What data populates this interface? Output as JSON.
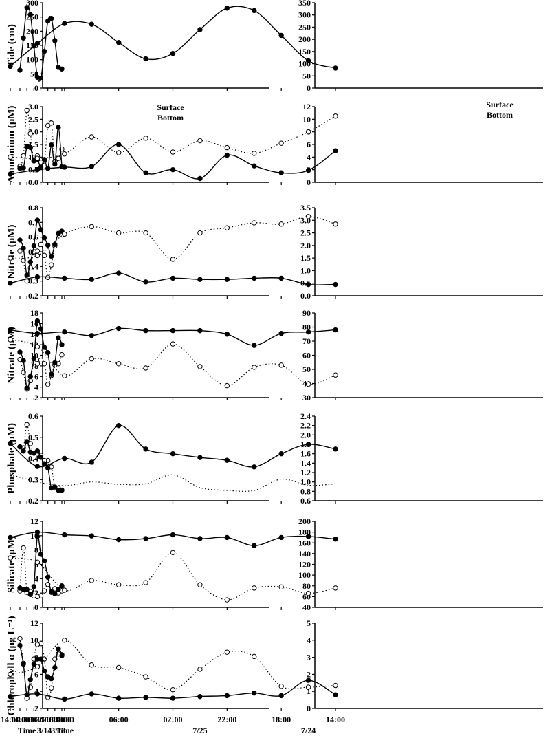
{
  "figure_title": "",
  "legend": {
    "surface": "Surface",
    "bottom": "Bottom"
  },
  "x_axes": {
    "left": {
      "ticks": [
        "14:00",
        "18:00",
        "22:00",
        "02:00",
        "06:00",
        "10:00",
        "14:00"
      ],
      "dates": [
        "3/13",
        "3/14"
      ],
      "time_label": "Time"
    },
    "right": {
      "ticks": [
        "14:00",
        "18:00",
        "22:00",
        "02:00",
        "06:00",
        "10:00",
        "14:00"
      ],
      "dates": [
        "7/24",
        "7/25"
      ],
      "time_label": "Time"
    }
  },
  "chart_data": [
    {
      "id": "tide-left",
      "type": "line",
      "ylabel": "Tide (cm)",
      "ylim": [
        0,
        300
      ],
      "yticks": [
        "0",
        "50",
        "100",
        "150",
        "200",
        "250",
        "300"
      ],
      "x": [
        0,
        2,
        4,
        6,
        8,
        10,
        12,
        14,
        16,
        18,
        20,
        22,
        24
      ],
      "series": [
        {
          "name": "Tide",
          "style": "filled",
          "values": [
            67,
            73,
            167,
            245,
            236,
            129,
            35,
            38,
            148,
            258,
            283,
            176,
            63
          ]
        }
      ]
    },
    {
      "id": "tide-right",
      "type": "line",
      "ylabel": "",
      "ylim": [
        0,
        350
      ],
      "yticks": [
        "0",
        "50",
        "100",
        "150",
        "200",
        "250",
        "300",
        "350"
      ],
      "x": [
        0,
        2,
        4,
        6,
        8,
        10,
        12,
        14,
        16,
        18,
        20,
        22,
        24
      ],
      "series": [
        {
          "name": "Tide",
          "style": "filled",
          "values": [
            82,
            112,
            216,
            318,
            328,
            240,
            142,
            120,
            187,
            262,
            265,
            183,
            89
          ]
        }
      ]
    },
    {
      "id": "ammonium-left",
      "type": "line",
      "ylabel": "Ammonium (μM)",
      "ylim": [
        0,
        3
      ],
      "yticks": [
        "0.0",
        "0.5",
        "1.0",
        "1.5",
        "2.0",
        "2.5",
        "3.0"
      ],
      "x": [
        0,
        2,
        4,
        6,
        8,
        10,
        12,
        14,
        16,
        18,
        20,
        22,
        24
      ],
      "series": [
        {
          "name": "Surface",
          "style": "filled",
          "values": [
            0.62,
            2.18,
            0.72,
            1.48,
            0.55,
            0.9,
            0.6,
            0.9,
            0.85,
            1.38,
            1.42,
            0.57,
            0.55
          ]
        },
        {
          "name": "Bottom",
          "style": "open",
          "values": [
            1.32,
            0.95,
            0.83,
            2.35,
            2.25,
            0.85,
            0.8,
            1.05,
            0.85,
            1.93,
            2.85,
            1.05,
            0.63
          ]
        }
      ]
    },
    {
      "id": "ammonium-right",
      "type": "line",
      "ylabel": "",
      "ylim": [
        0,
        12
      ],
      "yticks": [
        "0",
        "2",
        "4",
        "6",
        "8",
        "10",
        "12"
      ],
      "x": [
        0,
        2,
        4,
        6,
        8,
        10,
        12,
        14,
        16,
        18,
        20,
        22,
        24
      ],
      "series": [
        {
          "name": "Surface",
          "style": "filled",
          "values": [
            5.0,
            1.9,
            1.5,
            2.6,
            4.3,
            0.6,
            2.0,
            1.5,
            6.0,
            2.5,
            2.4,
            2.0,
            1.3
          ]
        },
        {
          "name": "Bottom",
          "style": "open",
          "values": [
            10.5,
            8.0,
            6.2,
            4.6,
            5.5,
            6.6,
            4.8,
            7.0,
            4.7,
            7.2,
            4.5,
            3.8,
            4.0
          ]
        }
      ]
    },
    {
      "id": "nitrite-left",
      "type": "line",
      "ylabel": "Nitrite (μM)",
      "ylim": [
        0.2,
        0.8
      ],
      "yticks": [
        "0.2",
        "0.3",
        "0.4",
        "0.5",
        "0.6",
        "0.7",
        "0.8"
      ],
      "x": [
        0,
        2,
        4,
        6,
        8,
        10,
        12,
        14,
        16,
        18,
        20,
        22,
        24
      ],
      "series": [
        {
          "name": "Surface",
          "style": "filled",
          "values": [
            0.64,
            0.625,
            0.55,
            0.47,
            0.545,
            0.595,
            0.65,
            0.715,
            0.54,
            0.43,
            0.34,
            0.525,
            0.58
          ]
        },
        {
          "name": "Bottom",
          "style": "open",
          "values": [
            0.615,
            0.625,
            0.54,
            0.41,
            0.325,
            0.475,
            0.55,
            0.505,
            0.5,
            0.39,
            0.3,
            0.44,
            0.505
          ]
        }
      ]
    },
    {
      "id": "nitrite-right",
      "type": "line",
      "ylabel": "",
      "ylim": [
        0,
        3.5
      ],
      "yticks": [
        "0.0",
        "0.5",
        "1.0",
        "1.5",
        "2.0",
        "2.5",
        "3.0",
        "3.5"
      ],
      "x": [
        0,
        2,
        4,
        6,
        8,
        10,
        12,
        14,
        16,
        18,
        20,
        22,
        24
      ],
      "series": [
        {
          "name": "Surface",
          "style": "filled",
          "values": [
            0.45,
            0.45,
            0.7,
            0.7,
            0.65,
            0.65,
            0.7,
            0.55,
            0.9,
            0.65,
            0.7,
            0.75,
            0.5
          ]
        },
        {
          "name": "Bottom",
          "style": "open",
          "values": [
            2.85,
            3.15,
            2.85,
            2.9,
            2.7,
            2.5,
            1.45,
            2.5,
            2.5,
            2.75,
            2.45,
            1.6,
            1.5
          ]
        }
      ]
    },
    {
      "id": "nitrate-left",
      "type": "line",
      "ylabel": "Nitrate (μM)",
      "ylim": [
        2,
        18
      ],
      "yticks": [
        "2",
        "4",
        "6",
        "8",
        "10",
        "12",
        "14",
        "16",
        "18"
      ],
      "x": [
        0,
        2,
        4,
        6,
        8,
        10,
        12,
        14,
        16,
        18,
        20,
        22,
        24
      ],
      "series": [
        {
          "name": "Surface",
          "style": "filled",
          "values": [
            12.0,
            13.3,
            8.6,
            6.4,
            10.5,
            11.5,
            15.0,
            16.5,
            9.4,
            6.0,
            3.8,
            9.0,
            10.6
          ]
        },
        {
          "name": "Bottom",
          "style": "open",
          "values": [
            10.1,
            8.4,
            8.2,
            6.2,
            4.5,
            8.4,
            9.1,
            8.4,
            8.6,
            5.2,
            3.6,
            6.8,
            9.2
          ]
        }
      ]
    },
    {
      "id": "nitrate-right",
      "type": "line",
      "ylabel": "",
      "ylim": [
        30,
        90
      ],
      "yticks": [
        "30",
        "40",
        "50",
        "60",
        "70",
        "80",
        "90"
      ],
      "x": [
        0,
        2,
        4,
        6,
        8,
        10,
        12,
        14,
        16,
        18,
        20,
        22,
        24
      ],
      "series": [
        {
          "name": "Surface",
          "style": "filled",
          "values": [
            78,
            76.5,
            75.5,
            67,
            75,
            77.5,
            77.5,
            77.5,
            79,
            74,
            76.5,
            75.5,
            78
          ]
        },
        {
          "name": "Bottom",
          "style": "open",
          "values": [
            46,
            39.5,
            53,
            51.5,
            38.5,
            52,
            68,
            51,
            54,
            57.5,
            45.5,
            66,
            71
          ]
        }
      ]
    },
    {
      "id": "phosphate-left",
      "type": "line",
      "ylabel": "Phosphate (μM)",
      "ylim": [
        0.2,
        0.6
      ],
      "yticks": [
        "0.2",
        "0.3",
        "0.4",
        "0.5",
        "0.6"
      ],
      "x": [
        0,
        2,
        4,
        6,
        8,
        10,
        12,
        14,
        16,
        18,
        20,
        22,
        24
      ],
      "series": [
        {
          "name": "Surface",
          "style": "filled",
          "values": [
            0.25,
            0.25,
            0.265,
            0.26,
            0.355,
            0.375,
            0.405,
            0.435,
            0.425,
            0.43,
            0.48,
            0.435,
            0.455
          ]
        },
        {
          "name": "Bottom",
          "style": "open",
          "values": [
            0.25,
            0.26,
            0.265,
            0.36,
            0.39,
            0.39,
            0.415,
            0.425,
            0.425,
            0.47,
            0.56,
            0.45,
            0.455
          ]
        }
      ]
    },
    {
      "id": "phosphate-right",
      "type": "line",
      "ylabel": "",
      "ylim": [
        0.6,
        2.4
      ],
      "yticks": [
        "0.6",
        "0.8",
        "1.0",
        "1.2",
        "1.4",
        "1.6",
        "1.8",
        "2.0",
        "2.2",
        "2.4"
      ],
      "x": [
        0,
        2,
        4,
        6,
        8,
        10,
        12,
        14,
        16,
        18,
        20,
        22,
        24
      ],
      "series": [
        {
          "name": "Surface",
          "style": "filled",
          "values": [
            1.7,
            1.8,
            1.6,
            1.32,
            1.46,
            1.52,
            1.6,
            1.7,
            2.2,
            1.42,
            1.5,
            1.33,
            1.82
          ]
        },
        {
          "name": "Bottom",
          "style": "line-only",
          "values": [
            0.96,
            0.93,
            1.06,
            0.82,
            0.82,
            0.88,
            1.15,
            0.96,
            0.95,
            1.0,
            0.92,
            1.0,
            1.16
          ]
        }
      ]
    },
    {
      "id": "silicate-left",
      "type": "line",
      "ylabel": "Silicate (μM)",
      "ylim": [
        0,
        12
      ],
      "yticks": [
        "0",
        "2",
        "4",
        "6",
        "8",
        "10",
        "12"
      ],
      "x": [
        0,
        2,
        4,
        6,
        8,
        10,
        12,
        14,
        16,
        18,
        20,
        22,
        24
      ],
      "series": [
        {
          "name": "Surface",
          "style": "filled",
          "values": [
            3.0,
            2.5,
            1.9,
            2.1,
            4.2,
            6.5,
            7.4,
            9.9,
            2.9,
            1.8,
            2.5,
            2.5,
            2.7
          ]
        },
        {
          "name": "Bottom",
          "style": "open",
          "values": [
            2.3,
            2.0,
            2.6,
            2.2,
            3.2,
            2.3,
            1.6,
            1.5,
            1.6,
            2.2,
            2.1,
            8.3,
            2.3
          ]
        }
      ]
    },
    {
      "id": "silicate-right",
      "type": "line",
      "ylabel": "",
      "ylim": [
        40,
        200
      ],
      "yticks": [
        "40",
        "60",
        "80",
        "100",
        "120",
        "140",
        "160",
        "180",
        "200"
      ],
      "x": [
        0,
        2,
        4,
        6,
        8,
        10,
        12,
        14,
        16,
        18,
        20,
        22,
        24
      ],
      "series": [
        {
          "name": "Surface",
          "style": "filled",
          "values": [
            167,
            172,
            170,
            155,
            170,
            168,
            175,
            168,
            166,
            173,
            175,
            180,
            170
          ]
        },
        {
          "name": "Bottom",
          "style": "open",
          "values": [
            76,
            66,
            78,
            76,
            54,
            82,
            142,
            86,
            82,
            90,
            72,
            124,
            132
          ]
        }
      ]
    },
    {
      "id": "chlorophyll-left",
      "type": "line",
      "ylabel": "Chlorophyll α (μg L⁻¹)",
      "ylim": [
        2,
        12
      ],
      "yticks": [
        "2",
        "4",
        "6",
        "8",
        "10",
        "12"
      ],
      "x": [
        0,
        2,
        4,
        6,
        8,
        10,
        12,
        14,
        16,
        18,
        20,
        22,
        24
      ],
      "series": [
        {
          "name": "Surface",
          "style": "filled",
          "values": [
            8.2,
            9.0,
            6.8,
            5.5,
            5.7,
            6.4,
            7.8,
            7.8,
            7.2,
            5.4,
            3.6,
            7.2,
            9.4
          ]
        },
        {
          "name": "Bottom",
          "style": "open",
          "values": [
            8.3,
            8.4,
            7.8,
            4.4,
            3.3,
            7.8,
            9.6,
            9.5,
            7.8,
            4.5,
            3.2,
            7.3,
            10.2
          ]
        }
      ]
    },
    {
      "id": "chlorophyll-right",
      "type": "line",
      "ylabel": "",
      "ylim": [
        0,
        5
      ],
      "yticks": [
        "0",
        "1",
        "2",
        "3",
        "4",
        "5"
      ],
      "x": [
        0,
        2,
        4,
        6,
        8,
        10,
        12,
        14,
        16,
        18,
        20,
        22,
        24
      ],
      "series": [
        {
          "name": "Surface",
          "style": "filled",
          "values": [
            0.8,
            1.65,
            0.75,
            0.9,
            0.75,
            0.7,
            0.6,
            0.65,
            0.6,
            0.85,
            0.55,
            0.85,
            0.7
          ]
        },
        {
          "name": "Bottom",
          "style": "open",
          "values": [
            1.35,
            1.25,
            1.3,
            3.05,
            3.3,
            2.3,
            1.1,
            1.85,
            2.4,
            2.55,
            4.0,
            2.45,
            2.0
          ]
        }
      ]
    }
  ]
}
